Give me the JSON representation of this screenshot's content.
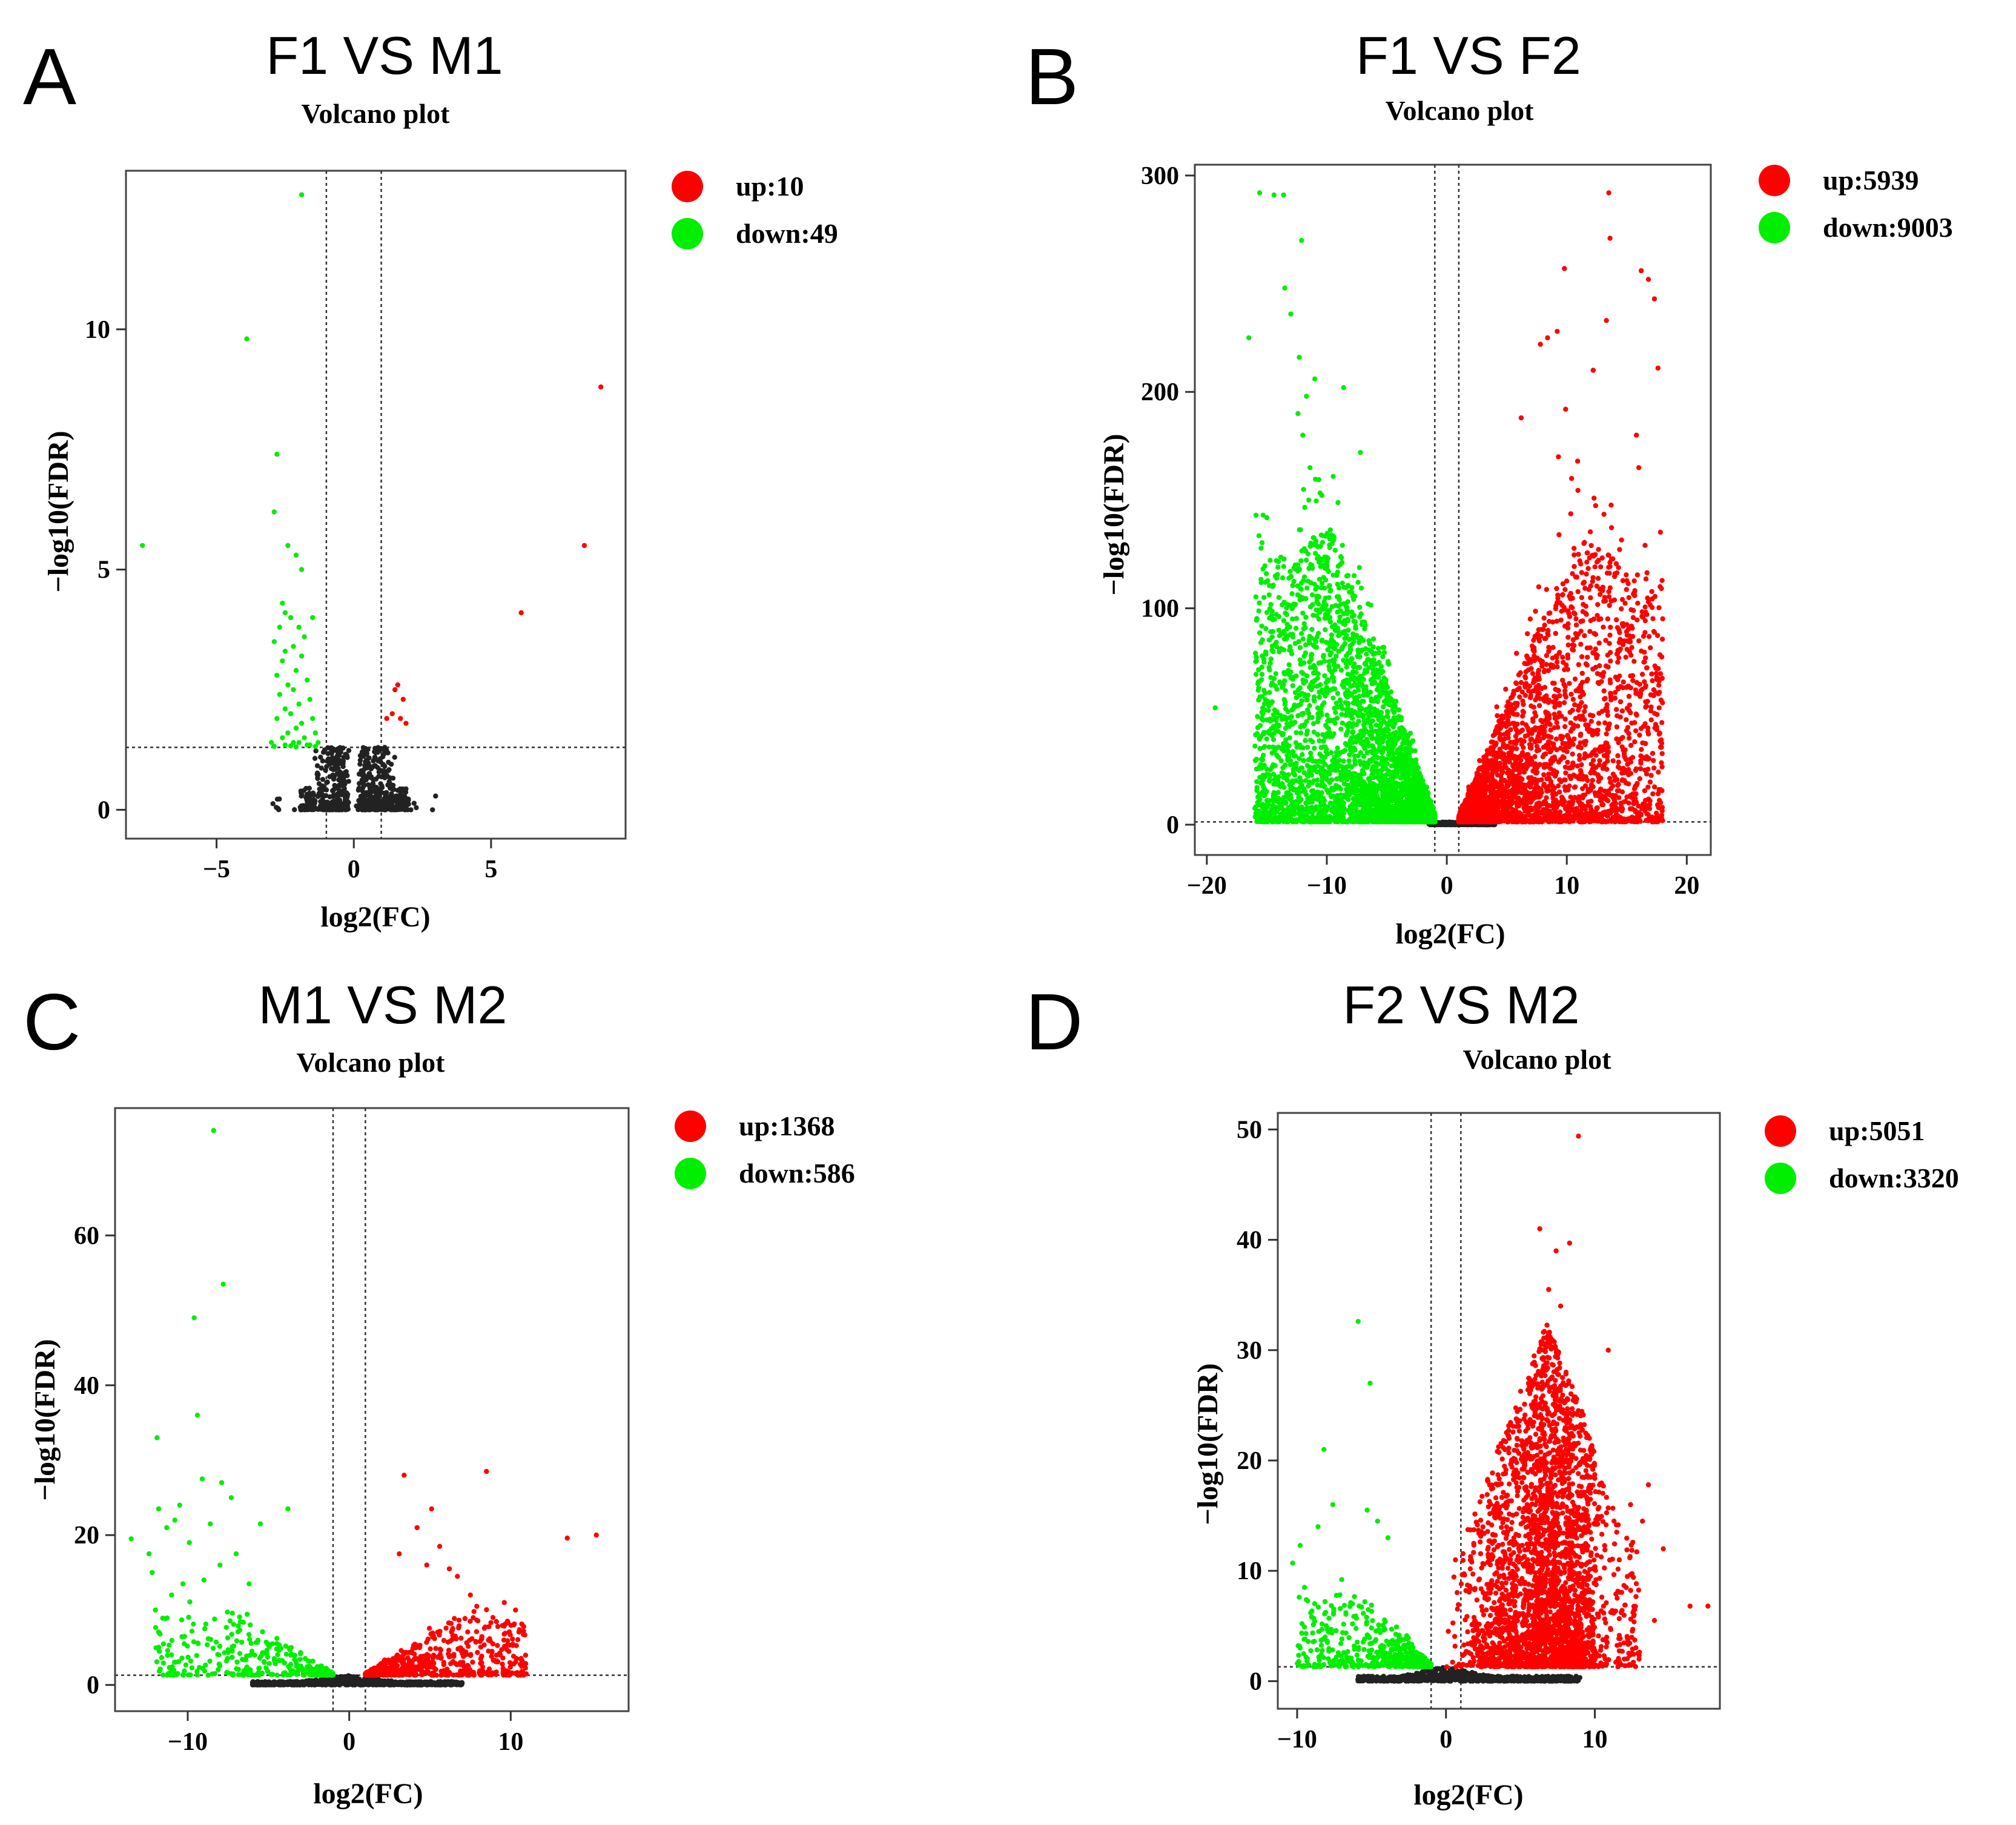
{
  "figure": {
    "panels": [
      {
        "letter": "A",
        "title": "F1 VS M1",
        "subtitle": "Volcano plot"
      },
      {
        "letter": "B",
        "title": "F1 VS F2",
        "subtitle": "Volcano plot"
      },
      {
        "letter": "C",
        "title": "M1 VS M2",
        "subtitle": "Volcano plot"
      },
      {
        "letter": "D",
        "title": "F2 VS M2",
        "subtitle": "Volcano plot"
      }
    ]
  },
  "colors": {
    "up": "#ff0000",
    "down": "#00ee00",
    "ns": "#222222",
    "frame": "#444444"
  },
  "chart_data": [
    {
      "type": "scatter",
      "title": "F1 VS M1",
      "subtitle": "Volcano plot",
      "xlabel": "log2(FC)",
      "ylabel": "−log10(FDR)",
      "xlim": [
        -8.3,
        9.9
      ],
      "ylim": [
        -0.6,
        13.3
      ],
      "xticks": [
        -5,
        0,
        5
      ],
      "yticks": [
        0,
        5,
        10
      ],
      "xtick_labels": [
        "−5",
        "0",
        "5"
      ],
      "ytick_labels": [
        "0",
        "5",
        "10"
      ],
      "fc_threshold": [
        -1,
        1
      ],
      "fdr_threshold": 1.3,
      "legend": [
        {
          "label": "up:10",
          "group": "up"
        },
        {
          "label": "down:49",
          "group": "down"
        }
      ],
      "series": [
        {
          "name": "up",
          "points": [
            [
              9.0,
              8.8
            ],
            [
              8.4,
              5.5
            ],
            [
              6.1,
              4.1
            ],
            [
              1.6,
              2.6
            ],
            [
              1.8,
              2.3
            ],
            [
              1.4,
              2.0
            ],
            [
              1.7,
              1.9
            ],
            [
              1.9,
              1.8
            ],
            [
              1.5,
              2.5
            ],
            [
              1.2,
              1.9
            ]
          ]
        },
        {
          "name": "down",
          "points": [
            [
              -1.9,
              12.8
            ],
            [
              -3.9,
              9.8
            ],
            [
              -2.8,
              7.4
            ],
            [
              -2.9,
              6.2
            ],
            [
              -2.4,
              5.5
            ],
            [
              -7.7,
              5.5
            ],
            [
              -2.1,
              5.3
            ],
            [
              -1.9,
              5.0
            ],
            [
              -2.6,
              4.3
            ],
            [
              -2.5,
              4.1
            ],
            [
              -1.5,
              4.0
            ],
            [
              -2.3,
              4.0
            ],
            [
              -2.7,
              3.8
            ],
            [
              -2.0,
              3.8
            ],
            [
              -1.8,
              3.6
            ],
            [
              -2.9,
              3.5
            ],
            [
              -2.2,
              3.4
            ],
            [
              -2.5,
              3.3
            ],
            [
              -1.9,
              3.2
            ],
            [
              -2.6,
              3.1
            ],
            [
              -2.1,
              2.9
            ],
            [
              -2.8,
              2.8
            ],
            [
              -1.7,
              2.7
            ],
            [
              -2.4,
              2.6
            ],
            [
              -2.2,
              2.5
            ],
            [
              -2.7,
              2.4
            ],
            [
              -1.6,
              2.3
            ],
            [
              -2.0,
              2.2
            ],
            [
              -2.5,
              2.1
            ],
            [
              -2.3,
              2.0
            ],
            [
              -1.5,
              1.9
            ],
            [
              -2.8,
              1.9
            ],
            [
              -1.9,
              1.8
            ],
            [
              -2.1,
              1.7
            ],
            [
              -2.4,
              1.6
            ],
            [
              -1.4,
              1.6
            ],
            [
              -2.6,
              1.5
            ],
            [
              -1.8,
              1.5
            ],
            [
              -2.2,
              1.4
            ],
            [
              -1.3,
              1.4
            ],
            [
              -2.0,
              1.4
            ],
            [
              -1.7,
              1.35
            ],
            [
              -3.0,
              1.4
            ],
            [
              -2.5,
              1.35
            ],
            [
              -1.6,
              1.35
            ],
            [
              -2.3,
              1.33
            ],
            [
              -2.9,
              1.32
            ],
            [
              -1.4,
              1.32
            ],
            [
              -2.1,
              1.31
            ]
          ]
        }
      ],
      "ns_cloud": {
        "n": 700,
        "x_center": 0,
        "x_spread": [
          -3.0,
          3.0
        ],
        "y_max": 1.3,
        "peak_at": [
          -0.8,
          0.8
        ],
        "seed": 11
      }
    },
    {
      "type": "scatter",
      "title": "F1 VS F2",
      "subtitle": "Volcano plot",
      "xlabel": "log2(FC)",
      "ylabel": "−log10(FDR)",
      "xlim": [
        -21,
        22
      ],
      "ylim": [
        -14,
        305
      ],
      "xticks": [
        -20,
        -10,
        0,
        10,
        20
      ],
      "yticks": [
        0,
        100,
        200,
        300
      ],
      "xtick_labels": [
        "−20",
        "−10",
        "0",
        "10",
        "20"
      ],
      "ytick_labels": [
        "0",
        "100",
        "200",
        "300"
      ],
      "fc_threshold": [
        -1,
        1
      ],
      "fdr_threshold": 1.3,
      "legend": [
        {
          "label": "up:5939",
          "group": "up"
        },
        {
          "label": "down:9003",
          "group": "down"
        }
      ],
      "series": [
        {
          "name": "up",
          "points": [
            [
              13.5,
              292
            ],
            [
              13.6,
              271
            ],
            [
              9.8,
              257
            ],
            [
              16.2,
              256
            ],
            [
              16.8,
              252
            ],
            [
              17.3,
              243
            ],
            [
              13.3,
              233
            ],
            [
              8.4,
              225
            ],
            [
              9.2,
              228
            ],
            [
              7.8,
              222
            ],
            [
              17.6,
              211
            ],
            [
              12.2,
              210
            ],
            [
              9.9,
              192
            ],
            [
              6.2,
              188
            ],
            [
              15.8,
              180
            ],
            [
              9.3,
              170
            ],
            [
              16.0,
              165
            ],
            [
              10.9,
              168
            ],
            [
              10.4,
              160
            ],
            [
              17.0,
              60
            ]
          ]
        },
        {
          "name": "down",
          "points": [
            [
              -15.6,
              292
            ],
            [
              -14.4,
              291
            ],
            [
              -13.6,
              291
            ],
            [
              -12.1,
              270
            ],
            [
              -13.0,
              236
            ],
            [
              -16.5,
              225
            ],
            [
              -12.3,
              216
            ],
            [
              -11.0,
              206
            ],
            [
              -8.6,
              202
            ],
            [
              -13.5,
              248
            ],
            [
              -11.7,
              198
            ],
            [
              -12.4,
              190
            ],
            [
              -12.0,
              180
            ],
            [
              -7.2,
              172
            ],
            [
              -11.4,
              165
            ],
            [
              -15.9,
              143
            ],
            [
              -19.3,
              54
            ],
            [
              -11.5,
              150
            ]
          ]
        }
      ],
      "clouds": [
        {
          "group": "up",
          "n": 3000,
          "x_range": [
            1,
            18
          ],
          "shape": "rvolcano",
          "y_scale": 130,
          "seed": 21
        },
        {
          "group": "down",
          "n": 4000,
          "x_range": [
            -16,
            -1
          ],
          "shape": "lvolcano",
          "y_scale": 135,
          "seed": 22
        },
        {
          "group": "ns",
          "n": 700,
          "x_range": [
            -1.5,
            4
          ],
          "shape": "floor",
          "y_scale": 4,
          "seed": 23
        }
      ]
    },
    {
      "type": "scatter",
      "title": "M1 VS M2",
      "subtitle": "Volcano plot",
      "xlabel": "log2(FC)",
      "ylabel": "−log10(FDR)",
      "xlim": [
        -14.5,
        17.3
      ],
      "ylim": [
        -3.5,
        77
      ],
      "xticks": [
        -10,
        0,
        10
      ],
      "yticks": [
        0,
        20,
        40,
        60
      ],
      "xtick_labels": [
        "−10",
        "0",
        "10"
      ],
      "ytick_labels": [
        "0",
        "20",
        "40",
        "60"
      ],
      "fc_threshold": [
        -1,
        1
      ],
      "fdr_threshold": 1.3,
      "legend": [
        {
          "label": "up:1368",
          "group": "up"
        },
        {
          "label": "down:586",
          "group": "down"
        }
      ],
      "series": [
        {
          "name": "up",
          "points": [
            [
              15.3,
              20.0
            ],
            [
              13.5,
              19.6
            ],
            [
              8.5,
              28.5
            ],
            [
              3.4,
              28.0
            ],
            [
              5.1,
              23.5
            ],
            [
              10.3,
              10.0
            ],
            [
              9.8,
              8.5
            ],
            [
              10.8,
              7.8
            ],
            [
              7.5,
              12.0
            ],
            [
              6.7,
              14.5
            ],
            [
              4.2,
              21.0
            ],
            [
              3.1,
              17.5
            ],
            [
              8.9,
              9.0
            ],
            [
              9.6,
              11.0
            ],
            [
              6.2,
              15.5
            ],
            [
              5.6,
              18.5
            ],
            [
              4.8,
              16.0
            ],
            [
              7.9,
              10.5
            ]
          ]
        },
        {
          "name": "down",
          "points": [
            [
              -8.4,
              74.0
            ],
            [
              -7.8,
              53.5
            ],
            [
              -9.6,
              49.0
            ],
            [
              -9.4,
              36.0
            ],
            [
              -11.9,
              33.0
            ],
            [
              -9.1,
              27.5
            ],
            [
              -7.9,
              27.0
            ],
            [
              -7.3,
              25.0
            ],
            [
              -11.8,
              23.5
            ],
            [
              -13.5,
              19.5
            ],
            [
              -12.4,
              17.5
            ],
            [
              -3.8,
              23.5
            ],
            [
              -5.5,
              21.5
            ],
            [
              -10.5,
              24.0
            ],
            [
              -10.8,
              22.0
            ],
            [
              -8.6,
              21.5
            ],
            [
              -11.3,
              21.0
            ],
            [
              -9.9,
              19.0
            ],
            [
              -12.2,
              15.0
            ],
            [
              -10.3,
              13.5
            ],
            [
              -11.0,
              12.0
            ],
            [
              -12.0,
              10.0
            ],
            [
              -9.0,
              14.0
            ],
            [
              -8.0,
              16.0
            ],
            [
              -7.0,
              17.5
            ],
            [
              -6.2,
              13.5
            ]
          ]
        }
      ],
      "clouds": [
        {
          "group": "up",
          "n": 700,
          "x_range": [
            1,
            11
          ],
          "shape": "rvolcano",
          "y_scale": 8,
          "seed": 31
        },
        {
          "group": "down",
          "n": 400,
          "x_range": [
            -12,
            -1
          ],
          "shape": "lvolcano",
          "y_scale": 9,
          "seed": 32
        },
        {
          "group": "ns",
          "n": 900,
          "x_range": [
            -6,
            7
          ],
          "shape": "floor",
          "y_scale": 1.3,
          "seed": 33
        }
      ]
    },
    {
      "type": "scatter",
      "title": "F2 VS M2",
      "subtitle": "Volcano plot",
      "xlabel": "log2(FC)",
      "ylabel": "−log10(FDR)",
      "xlim": [
        -11.3,
        18.4
      ],
      "ylim": [
        -2.5,
        51.5
      ],
      "xticks": [
        -10,
        0,
        10
      ],
      "yticks": [
        0,
        10,
        20,
        30,
        40,
        50
      ],
      "xtick_labels": [
        "−10",
        "0",
        "10"
      ],
      "ytick_labels": [
        "0",
        "10",
        "20",
        "30",
        "40",
        "50"
      ],
      "fc_threshold": [
        -1,
        1
      ],
      "fdr_threshold": 1.3,
      "legend": [
        {
          "label": "up:5051",
          "group": "up"
        },
        {
          "label": "down:3320",
          "group": "down"
        }
      ],
      "series": [
        {
          "name": "up",
          "points": [
            [
              8.9,
              49.4
            ],
            [
              6.3,
              41.0
            ],
            [
              8.3,
              39.7
            ],
            [
              7.4,
              39.0
            ],
            [
              10.9,
              30.0
            ],
            [
              6.9,
              35.5
            ],
            [
              7.7,
              34.0
            ],
            [
              16.4,
              6.8
            ],
            [
              17.6,
              6.8
            ],
            [
              14.0,
              5.5
            ],
            [
              13.6,
              17.8
            ],
            [
              14.6,
              12.0
            ],
            [
              13.2,
              14.5
            ],
            [
              12.4,
              16.0
            ]
          ]
        },
        {
          "name": "down",
          "points": [
            [
              -5.9,
              32.6
            ],
            [
              -5.1,
              27.0
            ],
            [
              -8.2,
              21.0
            ],
            [
              -9.8,
              12.3
            ],
            [
              -10.3,
              10.7
            ],
            [
              -9.5,
              8.5
            ],
            [
              -8.6,
              14.0
            ],
            [
              -7.6,
              16.0
            ],
            [
              -5.3,
              15.5
            ],
            [
              -4.6,
              14.5
            ],
            [
              -3.9,
              13.0
            ],
            [
              -9.8,
              3.0
            ]
          ]
        }
      ],
      "clouds": [
        {
          "group": "up",
          "n": 3000,
          "x_range": [
            1,
            13
          ],
          "shape": "upcone",
          "y_scale": 24,
          "seed": 41
        },
        {
          "group": "down",
          "n": 500,
          "x_range": [
            -10,
            -1
          ],
          "shape": "lvolcano",
          "y_scale": 7,
          "seed": 42
        },
        {
          "group": "ns",
          "n": 700,
          "x_range": [
            -6,
            9
          ],
          "shape": "floor",
          "y_scale": 1.3,
          "seed": 43
        }
      ]
    }
  ]
}
